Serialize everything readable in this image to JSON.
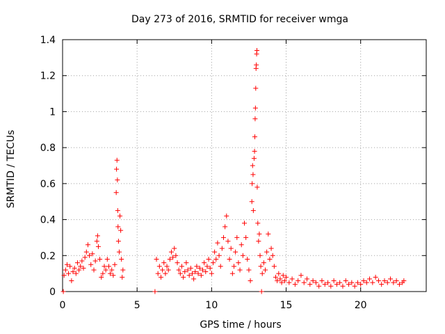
{
  "chart_data": {
    "type": "scatter",
    "title": "Day 273 of 2016, SRMTID for receiver wmga",
    "xlabel": "GPS time / hours",
    "ylabel": "SRMTID / TECUs",
    "xlim": [
      0,
      24.4
    ],
    "ylim": [
      0,
      1.4
    ],
    "xticks": [
      0,
      5,
      10,
      15,
      20
    ],
    "xtick_labels": [
      "0",
      "5",
      "10",
      "15",
      "20"
    ],
    "yticks": [
      0,
      0.2,
      0.4,
      0.6,
      0.8,
      1.0,
      1.2,
      1.4
    ],
    "ytick_labels": [
      "0",
      "0.2",
      "0.4",
      "0.6",
      "0.8",
      "1",
      "1.2",
      "1.4"
    ],
    "grid": true,
    "marker": "plus",
    "series": [
      {
        "name": "SRMTID",
        "color": "#ff0000",
        "points": [
          [
            0.05,
            0.0
          ],
          [
            0.1,
            0.09
          ],
          [
            0.2,
            0.12
          ],
          [
            0.3,
            0.15
          ],
          [
            0.4,
            0.1
          ],
          [
            0.5,
            0.14
          ],
          [
            0.6,
            0.06
          ],
          [
            0.7,
            0.11
          ],
          [
            0.8,
            0.13
          ],
          [
            0.9,
            0.1
          ],
          [
            1.0,
            0.16
          ],
          [
            1.1,
            0.12
          ],
          [
            1.2,
            0.14
          ],
          [
            1.3,
            0.17
          ],
          [
            1.4,
            0.13
          ],
          [
            1.5,
            0.19
          ],
          [
            1.6,
            0.22
          ],
          [
            1.7,
            0.26
          ],
          [
            1.8,
            0.2
          ],
          [
            1.9,
            0.15
          ],
          [
            2.0,
            0.21
          ],
          [
            2.1,
            0.12
          ],
          [
            2.2,
            0.17
          ],
          [
            2.3,
            0.28
          ],
          [
            2.35,
            0.31
          ],
          [
            2.4,
            0.25
          ],
          [
            2.5,
            0.18
          ],
          [
            2.6,
            0.08
          ],
          [
            2.7,
            0.1
          ],
          [
            2.8,
            0.14
          ],
          [
            2.9,
            0.12
          ],
          [
            3.0,
            0.18
          ],
          [
            3.1,
            0.14
          ],
          [
            3.2,
            0.1
          ],
          [
            3.3,
            0.12
          ],
          [
            3.4,
            0.09
          ],
          [
            3.5,
            0.15
          ],
          [
            3.6,
            0.55
          ],
          [
            3.62,
            0.68
          ],
          [
            3.65,
            0.73
          ],
          [
            3.68,
            0.62
          ],
          [
            3.7,
            0.45
          ],
          [
            3.72,
            0.36
          ],
          [
            3.75,
            0.28
          ],
          [
            3.8,
            0.22
          ],
          [
            3.85,
            0.42
          ],
          [
            3.9,
            0.34
          ],
          [
            3.95,
            0.18
          ],
          [
            4.0,
            0.08
          ],
          [
            4.05,
            0.12
          ],
          [
            6.2,
            0.0
          ],
          [
            6.3,
            0.18
          ],
          [
            6.4,
            0.1
          ],
          [
            6.5,
            0.14
          ],
          [
            6.6,
            0.08
          ],
          [
            6.7,
            0.12
          ],
          [
            6.8,
            0.16
          ],
          [
            6.9,
            0.1
          ],
          [
            7.0,
            0.14
          ],
          [
            7.1,
            0.12
          ],
          [
            7.2,
            0.18
          ],
          [
            7.3,
            0.22
          ],
          [
            7.4,
            0.19
          ],
          [
            7.5,
            0.24
          ],
          [
            7.6,
            0.2
          ],
          [
            7.7,
            0.16
          ],
          [
            7.8,
            0.12
          ],
          [
            7.9,
            0.1
          ],
          [
            8.0,
            0.14
          ],
          [
            8.1,
            0.08
          ],
          [
            8.2,
            0.11
          ],
          [
            8.3,
            0.16
          ],
          [
            8.4,
            0.12
          ],
          [
            8.5,
            0.09
          ],
          [
            8.6,
            0.13
          ],
          [
            8.7,
            0.1
          ],
          [
            8.8,
            0.07
          ],
          [
            8.9,
            0.11
          ],
          [
            9.0,
            0.14
          ],
          [
            9.1,
            0.1
          ],
          [
            9.2,
            0.13
          ],
          [
            9.3,
            0.09
          ],
          [
            9.4,
            0.12
          ],
          [
            9.5,
            0.16
          ],
          [
            9.6,
            0.11
          ],
          [
            9.7,
            0.14
          ],
          [
            9.8,
            0.18
          ],
          [
            9.9,
            0.13
          ],
          [
            10.0,
            0.1
          ],
          [
            10.1,
            0.16
          ],
          [
            10.2,
            0.22
          ],
          [
            10.3,
            0.18
          ],
          [
            10.4,
            0.27
          ],
          [
            10.5,
            0.2
          ],
          [
            10.6,
            0.14
          ],
          [
            10.7,
            0.24
          ],
          [
            10.8,
            0.3
          ],
          [
            10.9,
            0.36
          ],
          [
            11.0,
            0.42
          ],
          [
            11.1,
            0.28
          ],
          [
            11.2,
            0.18
          ],
          [
            11.3,
            0.24
          ],
          [
            11.4,
            0.1
          ],
          [
            11.5,
            0.14
          ],
          [
            11.6,
            0.22
          ],
          [
            11.7,
            0.3
          ],
          [
            11.8,
            0.16
          ],
          [
            11.9,
            0.12
          ],
          [
            12.0,
            0.26
          ],
          [
            12.1,
            0.2
          ],
          [
            12.2,
            0.38
          ],
          [
            12.3,
            0.3
          ],
          [
            12.4,
            0.18
          ],
          [
            12.5,
            0.12
          ],
          [
            12.6,
            0.06
          ],
          [
            12.7,
            0.5
          ],
          [
            12.72,
            0.6
          ],
          [
            12.75,
            0.7
          ],
          [
            12.78,
            0.65
          ],
          [
            12.8,
            0.45
          ],
          [
            12.85,
            0.74
          ],
          [
            12.88,
            0.78
          ],
          [
            12.9,
            0.86
          ],
          [
            12.92,
            0.96
          ],
          [
            12.94,
            1.02
          ],
          [
            12.96,
            1.13
          ],
          [
            12.98,
            1.24
          ],
          [
            13.0,
            1.26
          ],
          [
            13.02,
            1.32
          ],
          [
            13.04,
            1.34
          ],
          [
            13.06,
            0.58
          ],
          [
            13.1,
            0.38
          ],
          [
            13.15,
            0.28
          ],
          [
            13.2,
            0.32
          ],
          [
            13.25,
            0.2
          ],
          [
            13.3,
            0.14
          ],
          [
            13.35,
            0.0
          ],
          [
            13.4,
            0.1
          ],
          [
            13.5,
            0.16
          ],
          [
            13.6,
            0.12
          ],
          [
            13.7,
            0.22
          ],
          [
            13.8,
            0.32
          ],
          [
            13.9,
            0.18
          ],
          [
            14.0,
            0.24
          ],
          [
            14.1,
            0.2
          ],
          [
            14.2,
            0.14
          ],
          [
            14.3,
            0.08
          ],
          [
            14.4,
            0.06
          ],
          [
            14.5,
            0.1
          ],
          [
            14.6,
            0.07
          ],
          [
            14.7,
            0.05
          ],
          [
            14.8,
            0.09
          ],
          [
            14.9,
            0.06
          ],
          [
            15.0,
            0.08
          ],
          [
            15.2,
            0.05
          ],
          [
            15.4,
            0.07
          ],
          [
            15.6,
            0.04
          ],
          [
            15.8,
            0.06
          ],
          [
            16.0,
            0.09
          ],
          [
            16.2,
            0.05
          ],
          [
            16.4,
            0.07
          ],
          [
            16.6,
            0.04
          ],
          [
            16.8,
            0.06
          ],
          [
            17.0,
            0.05
          ],
          [
            17.2,
            0.03
          ],
          [
            17.4,
            0.06
          ],
          [
            17.6,
            0.04
          ],
          [
            17.8,
            0.05
          ],
          [
            18.0,
            0.03
          ],
          [
            18.2,
            0.06
          ],
          [
            18.4,
            0.04
          ],
          [
            18.6,
            0.05
          ],
          [
            18.8,
            0.03
          ],
          [
            19.0,
            0.06
          ],
          [
            19.2,
            0.04
          ],
          [
            19.4,
            0.05
          ],
          [
            19.6,
            0.03
          ],
          [
            19.8,
            0.05
          ],
          [
            20.0,
            0.04
          ],
          [
            20.2,
            0.06
          ],
          [
            20.4,
            0.05
          ],
          [
            20.6,
            0.07
          ],
          [
            20.8,
            0.05
          ],
          [
            21.0,
            0.08
          ],
          [
            21.2,
            0.06
          ],
          [
            21.4,
            0.04
          ],
          [
            21.6,
            0.06
          ],
          [
            21.8,
            0.05
          ],
          [
            22.0,
            0.07
          ],
          [
            22.2,
            0.05
          ],
          [
            22.4,
            0.06
          ],
          [
            22.6,
            0.04
          ],
          [
            22.8,
            0.05
          ],
          [
            22.9,
            0.06
          ]
        ]
      }
    ]
  }
}
